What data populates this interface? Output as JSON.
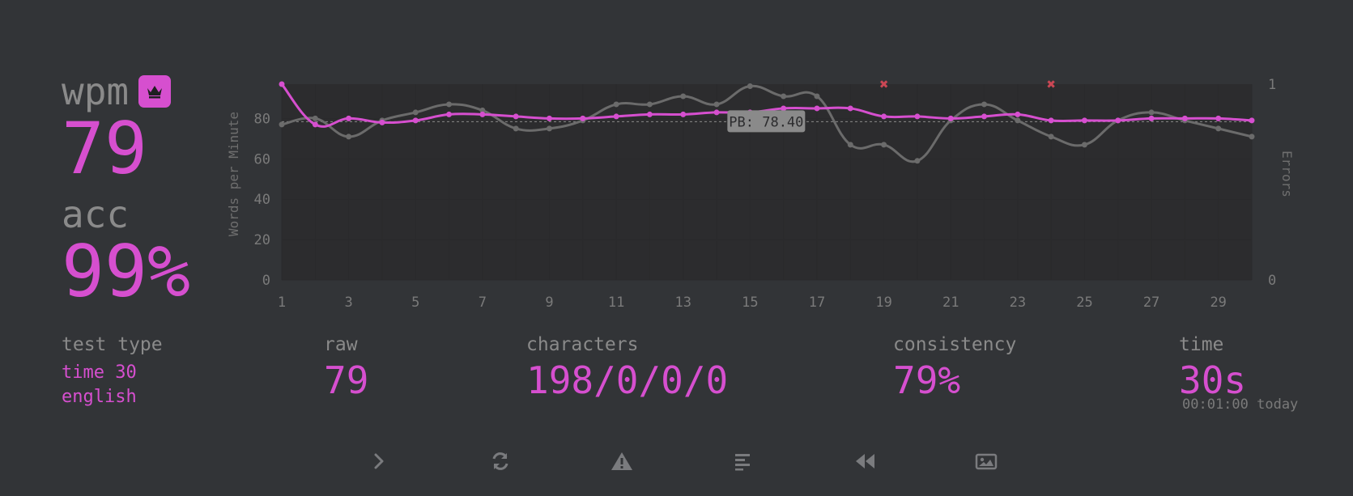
{
  "results": {
    "wpm_label": "wpm",
    "wpm_value": "79",
    "acc_label": "acc",
    "acc_value": "99%"
  },
  "stats": {
    "test_type_label": "test type",
    "test_type_line1": "time 30",
    "test_type_line2": "english",
    "raw_label": "raw",
    "raw_value": "79",
    "characters_label": "characters",
    "characters_value": "198/0/0/0",
    "consistency_label": "consistency",
    "consistency_value": "79%",
    "time_label": "time",
    "time_value": "30s",
    "timestamp": "00:01:00 today"
  },
  "toolbar": {
    "icons": [
      "next-test-icon",
      "restart-icon",
      "warning-icon",
      "word-history-icon",
      "replay-icon",
      "screenshot-icon"
    ]
  },
  "colors": {
    "background": "#323437",
    "accent": "#d64fcf",
    "raw_line": "#6b6b6b",
    "error_marker": "#ca4754",
    "muted": "#8a8a8a"
  },
  "chart_data": {
    "type": "line",
    "x": [
      1,
      2,
      3,
      4,
      5,
      6,
      7,
      8,
      9,
      10,
      11,
      12,
      13,
      14,
      15,
      16,
      17,
      18,
      19,
      20,
      21,
      22,
      23,
      24,
      25,
      26,
      27,
      28,
      29,
      30
    ],
    "x_ticks": [
      1,
      3,
      5,
      7,
      9,
      11,
      13,
      15,
      17,
      19,
      21,
      23,
      25,
      27,
      29
    ],
    "ylabel": "Words per Minute",
    "y2label": "Errors",
    "ylim": [
      0,
      97
    ],
    "y_ticks": [
      0,
      20,
      40,
      60,
      80
    ],
    "y2_ticks": [
      "0",
      "1"
    ],
    "series": [
      {
        "values": [
          97,
          77,
          80,
          78,
          79,
          82,
          82,
          81,
          80,
          80,
          81,
          82,
          82,
          83,
          83,
          85,
          85,
          85,
          81,
          81,
          80,
          81,
          82,
          79,
          79,
          79,
          80,
          80,
          80,
          79
        ]
      },
      {
        "values": [
          77,
          80,
          71,
          79,
          83,
          87,
          84,
          75,
          75,
          79,
          87,
          87,
          91,
          87,
          96,
          91,
          91,
          67,
          67,
          59,
          79,
          87,
          79,
          71,
          67,
          79,
          83,
          79,
          75,
          71
        ]
      }
    ],
    "errors_at": [
      19,
      24
    ],
    "pb_value": 78.4,
    "pb_label": "PB: 78.40",
    "grid": true
  }
}
